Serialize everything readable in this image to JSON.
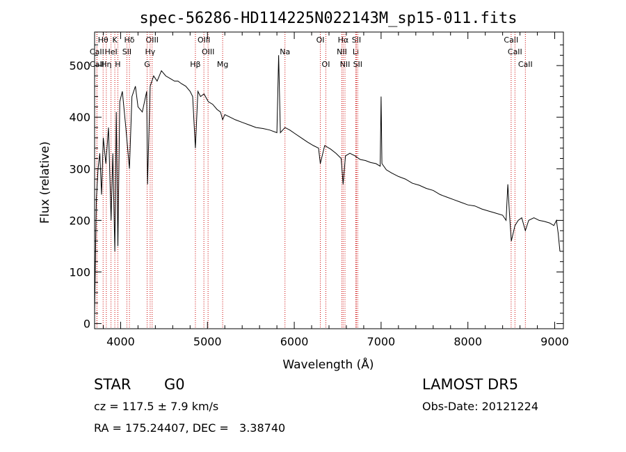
{
  "chart_data": {
    "type": "line",
    "title": "spec-56286-HD114225N022143M_sp15-011.fits",
    "xlabel": "Wavelength (Å)",
    "ylabel": "Flux (relative)",
    "xlim": [
      3700,
      9100
    ],
    "ylim": [
      -10,
      565
    ],
    "x_ticks": [
      4000,
      5000,
      6000,
      7000,
      8000,
      9000
    ],
    "y_ticks": [
      0,
      100,
      200,
      300,
      400,
      500
    ],
    "grid": false,
    "spectrum": {
      "x": [
        3700,
        3720,
        3740,
        3760,
        3780,
        3800,
        3830,
        3860,
        3890,
        3910,
        3933,
        3950,
        3968,
        3990,
        4020,
        4060,
        4101,
        4130,
        4170,
        4200,
        4250,
        4300,
        4310,
        4340,
        4380,
        4420,
        4470,
        4520,
        4570,
        4620,
        4660,
        4700,
        4750,
        4800,
        4830,
        4861,
        4890,
        4920,
        4960,
        5010,
        5060,
        5110,
        5150,
        5175,
        5200,
        5260,
        5320,
        5400,
        5480,
        5560,
        5640,
        5720,
        5800,
        5820,
        5840,
        5893,
        5950,
        6010,
        6080,
        6150,
        6220,
        6280,
        6300,
        6350,
        6420,
        6480,
        6540,
        6563,
        6590,
        6640,
        6700,
        6760,
        6820,
        6880,
        6940,
        6990,
        7000,
        7010,
        7060,
        7120,
        7200,
        7280,
        7360,
        7440,
        7520,
        7600,
        7680,
        7760,
        7840,
        7920,
        8000,
        8080,
        8160,
        8240,
        8320,
        8400,
        8440,
        8460,
        8480,
        8500,
        8542,
        8580,
        8620,
        8662,
        8700,
        8760,
        8820,
        8880,
        8940,
        8990,
        9020,
        9040,
        9060
      ],
      "y": [
        20,
        240,
        300,
        330,
        250,
        360,
        310,
        380,
        200,
        330,
        140,
        410,
        150,
        430,
        450,
        380,
        300,
        440,
        460,
        420,
        410,
        450,
        270,
        460,
        480,
        470,
        490,
        480,
        475,
        470,
        470,
        465,
        460,
        450,
        440,
        340,
        450,
        440,
        445,
        430,
        425,
        415,
        410,
        395,
        405,
        400,
        395,
        390,
        385,
        380,
        378,
        375,
        370,
        520,
        370,
        380,
        375,
        368,
        360,
        352,
        345,
        340,
        310,
        345,
        338,
        330,
        320,
        270,
        325,
        330,
        325,
        318,
        316,
        312,
        310,
        305,
        440,
        310,
        298,
        292,
        285,
        280,
        272,
        268,
        262,
        258,
        250,
        245,
        240,
        235,
        230,
        228,
        222,
        218,
        214,
        210,
        200,
        270,
        210,
        160,
        190,
        200,
        205,
        180,
        200,
        205,
        200,
        198,
        195,
        190,
        200,
        175,
        140
      ]
    },
    "line_markers": [
      {
        "label": "Hθ",
        "wave": 3798,
        "row": 0
      },
      {
        "label": "K",
        "wave": 3933,
        "row": 0
      },
      {
        "label": "Hδ",
        "wave": 4101,
        "row": 0
      },
      {
        "label": "OIII",
        "wave": 4363,
        "row": 0
      },
      {
        "label": "OIII",
        "wave": 4959,
        "row": 0
      },
      {
        "label": "OI",
        "wave": 6300,
        "row": 0
      },
      {
        "label": "Hα",
        "wave": 6563,
        "row": 0
      },
      {
        "label": "SII",
        "wave": 6716,
        "row": 0
      },
      {
        "label": "CaII",
        "wave": 8498,
        "row": 0
      },
      {
        "label": "CaII",
        "wave": 3727,
        "row": 1
      },
      {
        "label": "HeI",
        "wave": 3889,
        "row": 1
      },
      {
        "label": "SII",
        "wave": 4072,
        "row": 1
      },
      {
        "label": "Hγ",
        "wave": 4340,
        "row": 1
      },
      {
        "label": "OIII",
        "wave": 5007,
        "row": 1
      },
      {
        "label": "Na",
        "wave": 5893,
        "row": 1
      },
      {
        "label": "NII",
        "wave": 6548,
        "row": 1
      },
      {
        "label": "Li",
        "wave": 6708,
        "row": 1
      },
      {
        "label": "CaII",
        "wave": 8542,
        "row": 1
      },
      {
        "label": "CaII",
        "wave": 3727,
        "row": 2
      },
      {
        "label": "Hη",
        "wave": 3835,
        "row": 2
      },
      {
        "label": "H",
        "wave": 3968,
        "row": 2
      },
      {
        "label": "G",
        "wave": 4305,
        "row": 2
      },
      {
        "label": "Hβ",
        "wave": 4861,
        "row": 2
      },
      {
        "label": "Mg",
        "wave": 5175,
        "row": 2
      },
      {
        "label": "OI",
        "wave": 6364,
        "row": 2
      },
      {
        "label": "NII",
        "wave": 6584,
        "row": 2
      },
      {
        "label": "SII",
        "wave": 6731,
        "row": 2
      },
      {
        "label": "CaII",
        "wave": 8662,
        "row": 2
      }
    ]
  },
  "info": {
    "object_class": "STAR",
    "subclass": "G0",
    "survey": "LAMOST DR5",
    "redshift": "cz = 117.5 ± 7.9 km/s",
    "obs_date": "Obs-Date: 20121224",
    "coords": "RA = 175.24407, DEC =   3.38740"
  }
}
